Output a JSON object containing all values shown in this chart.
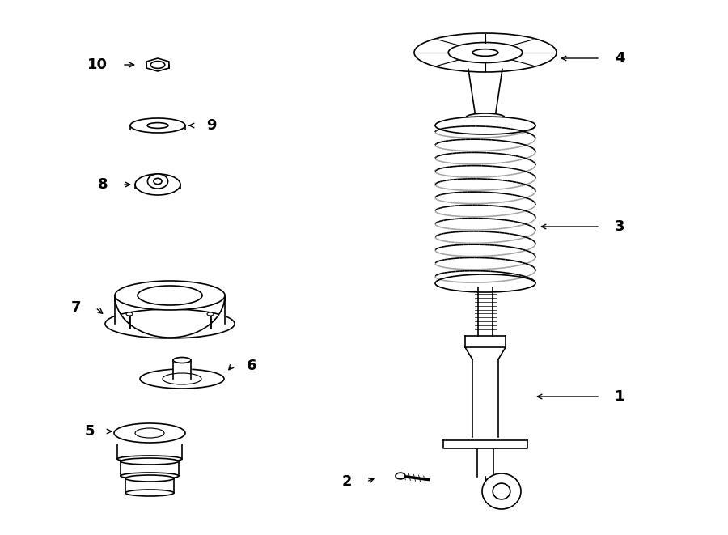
{
  "bg_color": "#ffffff",
  "line_color": "#000000",
  "label_color": "#000000",
  "figsize": [
    9.0,
    6.61
  ],
  "dpi": 100
}
